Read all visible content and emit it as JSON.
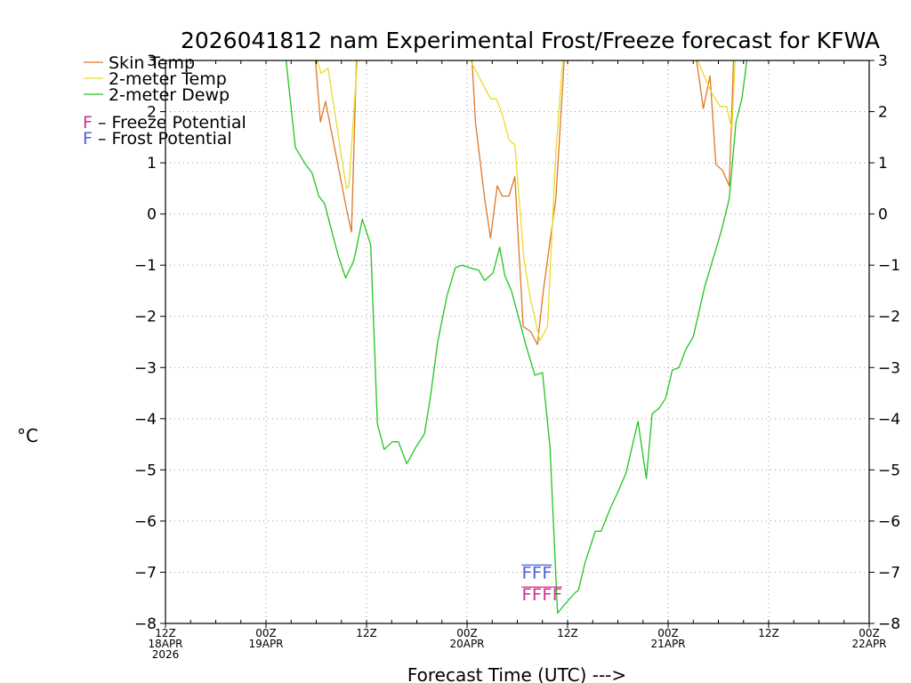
{
  "chart_data": {
    "type": "line",
    "title": "2026041812 nam Experimental Frost/Freeze forecast for KFWA",
    "xlabel": "Forecast Time (UTC) --->",
    "ylabel": "°C",
    "ylim": [
      -8,
      3
    ],
    "xlim": [
      0,
      84
    ],
    "yticks": [
      -8,
      -7,
      -6,
      -5,
      -4,
      -3,
      -2,
      -1,
      0,
      1,
      2,
      3
    ],
    "ytick_labels": [
      "−8",
      "−7",
      "−6",
      "−5",
      "−4",
      "−3",
      "−2",
      "−1",
      "0",
      "1",
      "2",
      "3"
    ],
    "xticks": [
      {
        "hour": 0,
        "lines": [
          "12Z",
          "18APR",
          "2026"
        ]
      },
      {
        "hour": 12,
        "lines": [
          "00Z",
          "19APR"
        ]
      },
      {
        "hour": 24,
        "lines": [
          "12Z"
        ]
      },
      {
        "hour": 36,
        "lines": [
          "00Z",
          "20APR"
        ]
      },
      {
        "hour": 48,
        "lines": [
          "12Z"
        ]
      },
      {
        "hour": 60,
        "lines": [
          "00Z",
          "21APR"
        ]
      },
      {
        "hour": 72,
        "lines": [
          "12Z"
        ]
      },
      {
        "hour": 84,
        "lines": [
          "00Z",
          "22APR"
        ]
      }
    ],
    "grid": true,
    "series": [
      {
        "name": "Skin Temp",
        "color": "#e07828",
        "segments": [
          [
            [
              17.9,
              3
            ],
            [
              18.5,
              1.8
            ],
            [
              19.1,
              2.2
            ],
            [
              20.9,
              0.7
            ],
            [
              21.6,
              0.1
            ],
            [
              22.2,
              -0.35
            ],
            [
              22.8,
              3
            ]
          ],
          [
            [
              36.6,
              3
            ],
            [
              37.0,
              1.8
            ],
            [
              38.1,
              0.3
            ],
            [
              38.8,
              -0.47
            ],
            [
              39.6,
              0.55
            ],
            [
              40.2,
              0.35
            ],
            [
              41.0,
              0.35
            ],
            [
              41.7,
              0.73
            ],
            [
              42.7,
              -2.2
            ],
            [
              43.6,
              -2.3
            ],
            [
              44.4,
              -2.55
            ],
            [
              45.1,
              -1.5
            ],
            [
              46.6,
              0.3
            ],
            [
              47.6,
              3
            ]
          ],
          [
            [
              63.4,
              3
            ],
            [
              64.2,
              2.06
            ],
            [
              65.0,
              2.7
            ],
            [
              65.7,
              0.97
            ],
            [
              66.5,
              0.85
            ],
            [
              67.3,
              0.55
            ],
            [
              67.8,
              3
            ]
          ]
        ]
      },
      {
        "name": "2-meter Temp",
        "color": "#e8dc28",
        "segments": [
          [
            [
              18.1,
              3
            ],
            [
              18.6,
              2.75
            ],
            [
              19.4,
              2.85
            ],
            [
              21.6,
              0.5
            ],
            [
              21.9,
              0.55
            ],
            [
              22.9,
              3
            ]
          ],
          [
            [
              36.4,
              3
            ],
            [
              38.8,
              2.25
            ],
            [
              39.5,
              2.25
            ],
            [
              40.2,
              1.95
            ],
            [
              41.0,
              1.45
            ],
            [
              41.7,
              1.35
            ],
            [
              42.8,
              -0.9
            ],
            [
              43.5,
              -1.6
            ],
            [
              44.7,
              -2.48
            ],
            [
              45.6,
              -2.2
            ],
            [
              46.6,
              1.2
            ],
            [
              47.4,
              3
            ]
          ],
          [
            [
              63.5,
              3
            ],
            [
              65.1,
              2.4
            ],
            [
              66.2,
              2.1
            ],
            [
              67.0,
              2.1
            ],
            [
              67.6,
              1.65
            ],
            [
              68.0,
              3
            ]
          ]
        ]
      },
      {
        "name": "2-meter Dewp",
        "color": "#22c422",
        "segments": [
          [
            [
              14.4,
              3
            ],
            [
              15.5,
              1.3
            ],
            [
              16.6,
              1.0
            ],
            [
              17.5,
              0.8
            ],
            [
              18.3,
              0.35
            ],
            [
              19.0,
              0.2
            ],
            [
              19.8,
              -0.3
            ],
            [
              20.6,
              -0.8
            ],
            [
              21.5,
              -1.25
            ],
            [
              22.5,
              -0.9
            ],
            [
              23.5,
              -0.1
            ],
            [
              24.5,
              -0.6
            ],
            [
              25.3,
              -4.1
            ],
            [
              26.1,
              -4.6
            ],
            [
              27.1,
              -4.45
            ],
            [
              27.8,
              -4.45
            ],
            [
              28.8,
              -4.88
            ],
            [
              29.9,
              -4.55
            ],
            [
              30.9,
              -4.3
            ],
            [
              31.6,
              -3.6
            ],
            [
              32.5,
              -2.5
            ],
            [
              33.6,
              -1.6
            ],
            [
              34.6,
              -1.05
            ],
            [
              35.4,
              -1.0
            ],
            [
              36.3,
              -1.05
            ],
            [
              37.4,
              -1.1
            ],
            [
              38.1,
              -1.3
            ],
            [
              39.1,
              -1.15
            ],
            [
              39.9,
              -0.65
            ],
            [
              40.5,
              -1.2
            ],
            [
              41.3,
              -1.5
            ],
            [
              42.2,
              -2.05
            ],
            [
              43.0,
              -2.55
            ],
            [
              44.1,
              -3.15
            ],
            [
              45.0,
              -3.1
            ],
            [
              45.9,
              -4.55
            ],
            [
              46.8,
              -7.8
            ],
            [
              47.8,
              -7.6
            ],
            [
              48.9,
              -7.4
            ],
            [
              49.3,
              -7.35
            ],
            [
              50.1,
              -6.8
            ],
            [
              51.3,
              -6.2
            ],
            [
              52.0,
              -6.2
            ],
            [
              53.1,
              -5.75
            ],
            [
              54.1,
              -5.4
            ],
            [
              55.0,
              -5.05
            ],
            [
              56.4,
              -4.05
            ],
            [
              57.4,
              -5.17
            ],
            [
              58.1,
              -3.9
            ],
            [
              58.9,
              -3.8
            ],
            [
              59.7,
              -3.6
            ],
            [
              60.5,
              -3.05
            ],
            [
              61.3,
              -3.0
            ],
            [
              62.1,
              -2.65
            ],
            [
              63.0,
              -2.4
            ],
            [
              64.4,
              -1.4
            ],
            [
              65.5,
              -0.8
            ],
            [
              66.4,
              -0.3
            ],
            [
              67.3,
              0.3
            ],
            [
              68.1,
              1.8
            ],
            [
              68.8,
              2.25
            ],
            [
              69.4,
              3
            ]
          ]
        ]
      }
    ],
    "legend": [
      {
        "label": "Skin Temp",
        "color": "#e07828"
      },
      {
        "label": "2-meter Temp",
        "color": "#e8dc28"
      },
      {
        "label": "2-meter Dewp",
        "color": "#22c422"
      }
    ],
    "potential_legend": [
      {
        "marker": "F",
        "marker_color": "#d22c8c",
        "label": " – Freeze Potential"
      },
      {
        "marker": "F",
        "marker_color": "#4a60d8",
        "label": " – Frost Potential"
      }
    ],
    "annotations": [
      {
        "text": "FFF",
        "kind": "frost",
        "color": "#4a60d8",
        "hour_start": 42.5,
        "y": -7.12
      },
      {
        "text": "FFFF",
        "kind": "freeze",
        "color": "#d22c8c",
        "hour_start": 42.5,
        "y": -7.55
      }
    ]
  }
}
